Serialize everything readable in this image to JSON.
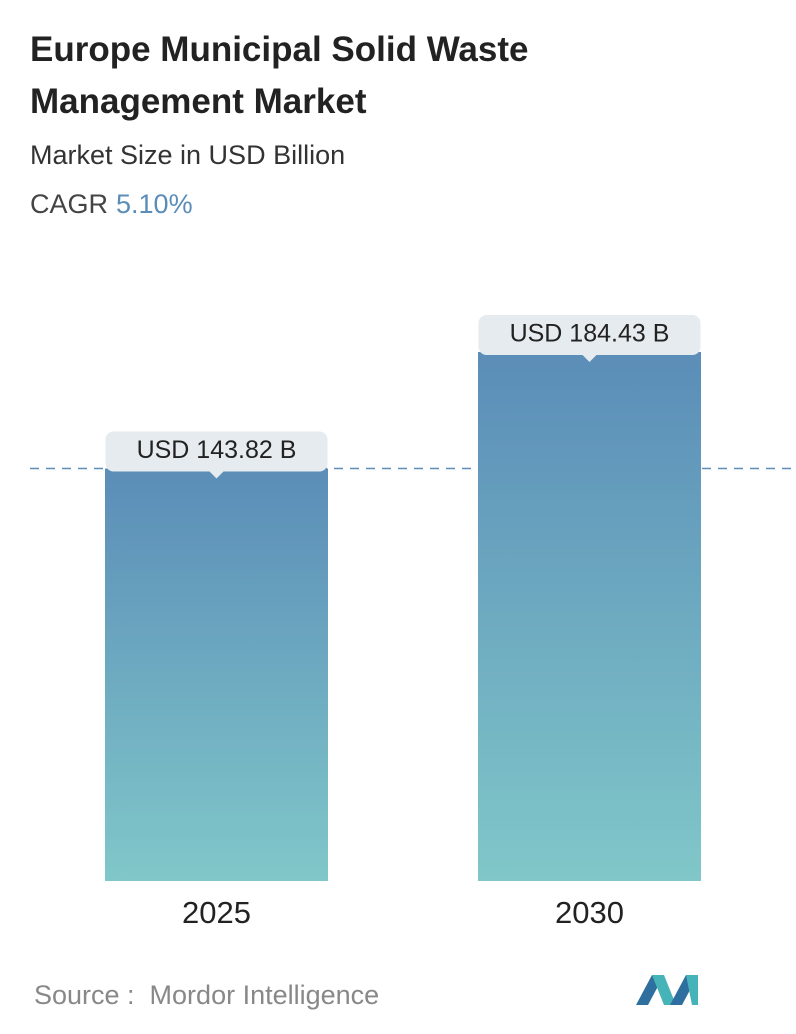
{
  "chart_data": {
    "type": "bar",
    "title": "Europe Municipal Solid Waste Management Market",
    "subtitle": "Market Size in USD Billion",
    "cagr_label": "CAGR",
    "cagr_value": "5.10%",
    "categories": [
      "2025",
      "2030"
    ],
    "values": [
      143.82,
      184.43
    ],
    "value_labels": [
      "USD 143.82 B",
      "USD 184.43 B"
    ],
    "gradient": [
      "#5b8db8",
      "#80c7c9"
    ],
    "reference_line": true,
    "source": "Source :  Mordor Intelligence"
  }
}
